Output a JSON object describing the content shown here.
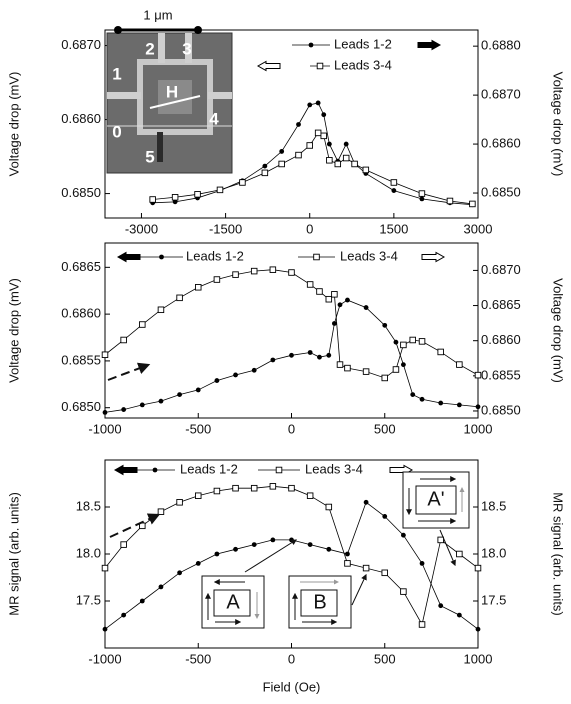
{
  "chart_data": [
    {
      "type": "line",
      "ylabel": "Voltage drop (mV)",
      "y2label": "Voltage drop (mV)",
      "inset_labels": [
        "1 μm",
        "1",
        "2",
        "3",
        "4",
        "0",
        "5",
        "H"
      ],
      "x": [
        -2800,
        -2400,
        -2000,
        -1600,
        -1200,
        -800,
        -500,
        -200,
        0,
        150,
        250,
        350,
        500,
        650,
        800,
        1000,
        1500,
        2000,
        2500,
        2900
      ],
      "xlim": [
        -3650,
        3000
      ],
      "xticks": [
        -3000,
        -1500,
        0,
        1500,
        3000
      ],
      "ylim": [
        0.68467,
        0.68721
      ],
      "yticks": [
        {
          "value": 0.685,
          "label": "0.6850"
        },
        {
          "value": 0.686,
          "label": "0.6860"
        },
        {
          "value": 0.687,
          "label": "0.6870"
        }
      ],
      "y2lim": [
        0.68449,
        0.68833
      ],
      "y2ticks": [
        {
          "value": 0.685,
          "label": "0.6850"
        },
        {
          "value": 0.686,
          "label": "0.6860"
        },
        {
          "value": 0.687,
          "label": "0.6870"
        },
        {
          "value": 0.688,
          "label": "0.6880"
        }
      ],
      "series": [
        {
          "name": "Leads 1-2",
          "color": "#000000",
          "marker": "circle",
          "axis": "y2",
          "values": [
            0.6848,
            0.68482,
            0.6849,
            0.68505,
            0.68525,
            0.68555,
            0.68585,
            0.6864,
            0.6868,
            0.68684,
            0.6866,
            0.686,
            0.68565,
            0.686,
            0.6856,
            0.6854,
            0.68505,
            0.68488,
            0.6848,
            0.68476
          ]
        },
        {
          "name": "Leads 3-4",
          "color": "#000000",
          "marker": "square",
          "axis": "y",
          "values": [
            0.68492,
            0.68495,
            0.68499,
            0.68505,
            0.68515,
            0.68528,
            0.6854,
            0.68552,
            0.68565,
            0.68582,
            0.68578,
            0.68545,
            0.6854,
            0.68548,
            0.6854,
            0.68532,
            0.68515,
            0.685,
            0.6849,
            0.68486
          ]
        }
      ]
    },
    {
      "type": "line",
      "ylabel": "Voltage drop (mV)",
      "y2label": "Voltage drop (mV)",
      "x": [
        -1000,
        -900,
        -800,
        -700,
        -600,
        -500,
        -400,
        -300,
        -200,
        -100,
        0,
        100,
        150,
        200,
        230,
        260,
        300,
        400,
        500,
        560,
        600,
        650,
        700,
        800,
        900,
        1000
      ],
      "xlim": [
        -1000,
        1000
      ],
      "xticks": [
        -1000,
        -500,
        0,
        500,
        1000
      ],
      "ylim": [
        0.68489,
        0.68676
      ],
      "yticks": [
        {
          "value": 0.685,
          "label": "0.6850"
        },
        0.6855,
        {
          "value": 0.686,
          "label": "0.6860"
        },
        0.6865
      ],
      "y2lim": [
        0.6849,
        0.68739
      ],
      "y2ticks": [
        {
          "value": 0.685,
          "label": "0.6850"
        },
        0.6855,
        {
          "value": 0.686,
          "label": "0.6860"
        },
        0.6865,
        {
          "value": 0.687,
          "label": "0.6870"
        }
      ],
      "series": [
        {
          "name": "Leads 1-2",
          "color": "#000000",
          "marker": "circle",
          "axis": "y",
          "values": [
            0.68495,
            0.68498,
            0.68503,
            0.68507,
            0.68514,
            0.68519,
            0.68529,
            0.68535,
            0.6854,
            0.68551,
            0.68556,
            0.68559,
            0.68554,
            0.68556,
            0.6859,
            0.6861,
            0.68615,
            0.68607,
            0.68588,
            0.6857,
            0.68546,
            0.68514,
            0.68509,
            0.68505,
            0.68503,
            0.68501
          ]
        },
        {
          "name": "Leads 3-4",
          "color": "#000000",
          "marker": "square",
          "axis": "y2",
          "values": [
            0.6858,
            0.68601,
            0.68623,
            0.68644,
            0.68661,
            0.68676,
            0.68687,
            0.68694,
            0.68699,
            0.68701,
            0.68697,
            0.6868,
            0.6867,
            0.68659,
            0.68666,
            0.68566,
            0.68561,
            0.68556,
            0.68547,
            0.68559,
            0.68594,
            0.68601,
            0.68599,
            0.68584,
            0.68566,
            0.68551
          ]
        }
      ]
    },
    {
      "type": "line",
      "ylabel": "MR signal (arb. units)",
      "y2label": "MR signal (arb. units)",
      "xlabel": "Field (Oe)",
      "inset_labels": [
        "A",
        "B",
        "A'"
      ],
      "x": [
        -1000,
        -900,
        -800,
        -700,
        -600,
        -500,
        -400,
        -300,
        -200,
        -100,
        0,
        100,
        200,
        300,
        400,
        500,
        600,
        700,
        800,
        900,
        1000
      ],
      "xlim": [
        -1000,
        1000
      ],
      "xticks": [
        -1000,
        -500,
        0,
        500,
        1000
      ],
      "ylim": [
        17.0,
        19.0
      ],
      "yticks": [
        17.5,
        {
          "value": 18.0,
          "label": "18.0"
        },
        18.5
      ],
      "y2lim": [
        17.0,
        19.0
      ],
      "y2ticks": [
        17.5,
        {
          "value": 18.0,
          "label": "18.0"
        },
        18.5
      ],
      "series": [
        {
          "name": "Leads 1-2",
          "color": "#000000",
          "marker": "circle",
          "axis": "y",
          "values": [
            17.2,
            17.35,
            17.5,
            17.65,
            17.8,
            17.9,
            18.0,
            18.05,
            18.1,
            18.15,
            18.15,
            18.1,
            18.05,
            18.0,
            18.55,
            18.4,
            18.2,
            17.9,
            17.45,
            17.35,
            17.2
          ]
        },
        {
          "name": "Leads 3-4",
          "color": "#000000",
          "marker": "square",
          "axis": "y2",
          "values": [
            17.85,
            18.1,
            18.3,
            18.45,
            18.55,
            18.62,
            18.67,
            18.7,
            18.7,
            18.72,
            18.7,
            18.62,
            18.5,
            17.9,
            17.85,
            17.8,
            17.6,
            17.25,
            18.15,
            18.0,
            17.85
          ]
        }
      ]
    }
  ]
}
